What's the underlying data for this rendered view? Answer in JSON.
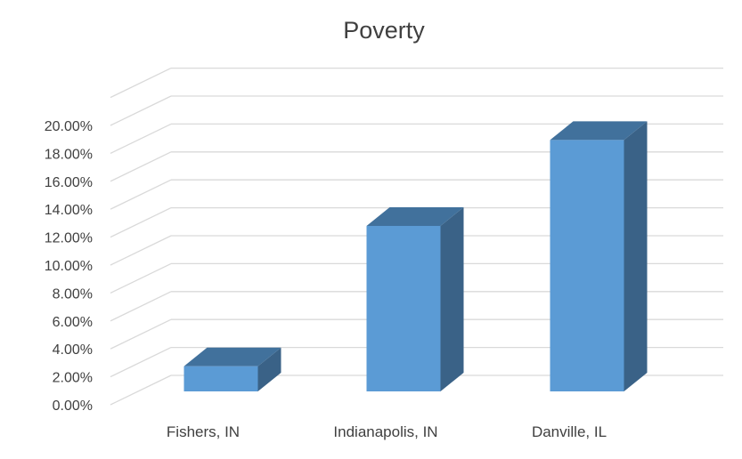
{
  "chart_data": {
    "type": "bar",
    "title": "Poverty",
    "xlabel": "",
    "ylabel": "",
    "categories": [
      "Fishers, IN",
      "Indianapolis, IN",
      "Danville, IL"
    ],
    "series": [
      {
        "values": [
          0.018,
          0.1185,
          0.18
        ]
      }
    ],
    "ylim": [
      0,
      0.22
    ],
    "yticks": [
      "0.00%",
      "2.00%",
      "4.00%",
      "6.00%",
      "8.00%",
      "10.00%",
      "12.00%",
      "14.00%",
      "16.00%",
      "18.00%",
      "20.00%"
    ],
    "grid": true,
    "legend": "none",
    "style": "3d-column",
    "colors": {
      "front": "#5B9BD5",
      "top": "#41719C",
      "side": "#3A6287",
      "grid": "#D9D9D9"
    }
  }
}
